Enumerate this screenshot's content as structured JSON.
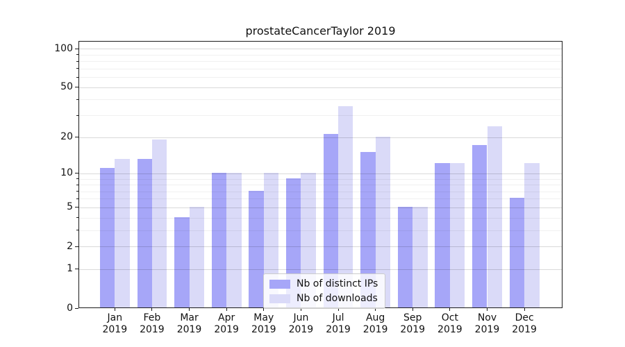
{
  "title": "prostateCancerTaylor 2019",
  "chart_data": {
    "type": "bar",
    "title": "prostateCancerTaylor 2019",
    "categories": [
      "Jan",
      "Feb",
      "Mar",
      "Apr",
      "May",
      "Jun",
      "Jul",
      "Aug",
      "Sep",
      "Oct",
      "Nov",
      "Dec"
    ],
    "category_year_label": "2019",
    "series": [
      {
        "name": "Nb of distinct IPs",
        "color": "#a6a6f8",
        "values": [
          11,
          13,
          4,
          10,
          7,
          9,
          21,
          15,
          5,
          12,
          17,
          6
        ]
      },
      {
        "name": "Nb of downloads",
        "color": "#dadaf8",
        "values": [
          13,
          19,
          5,
          10,
          10,
          10,
          35,
          20,
          5,
          12,
          24,
          12
        ]
      }
    ],
    "y_scale": "log1p",
    "y_tick_labels": [
      0,
      1,
      2,
      5,
      10,
      20,
      50,
      100
    ],
    "y_major_gridlines": [
      1,
      2,
      5,
      10,
      20,
      50,
      100
    ],
    "y_minor_gridlines": [
      3,
      4,
      6,
      7,
      8,
      9,
      30,
      40,
      60,
      70,
      80,
      90
    ],
    "ylim": [
      0,
      114
    ],
    "grid": true,
    "legend_position": "lower-center-inside",
    "bar_mode": "grouped-pair-touching"
  }
}
